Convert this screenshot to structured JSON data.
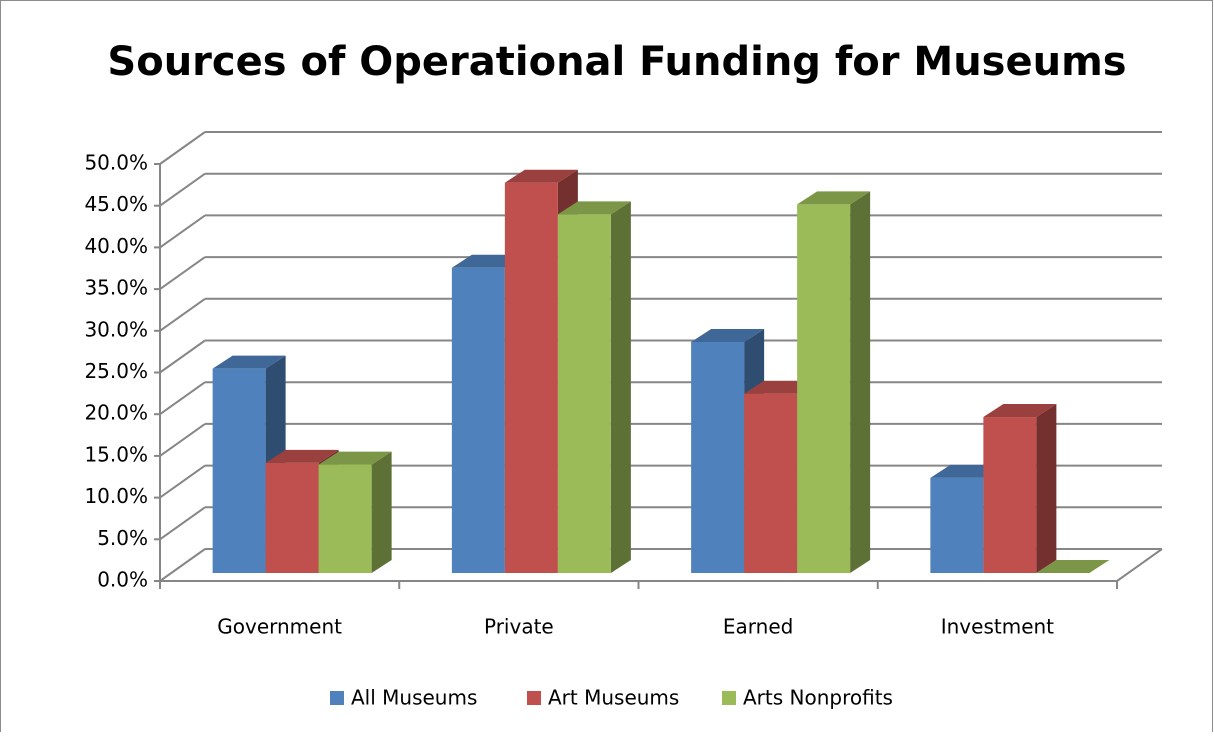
{
  "chart_data": {
    "type": "bar3d",
    "title": "Sources of Operational Funding for Museums",
    "categories": [
      "Government",
      "Private",
      "Earned",
      "Investment"
    ],
    "series": [
      {
        "name": "All Museums",
        "color": "#4f81bd",
        "values": [
          24.5,
          36.6,
          27.7,
          11.4
        ]
      },
      {
        "name": "Art Museums",
        "color": "#c0504d",
        "values": [
          13.2,
          46.8,
          21.5,
          18.7
        ]
      },
      {
        "name": "Arts Nonprofits",
        "color": "#9bbb59",
        "values": [
          13.0,
          43.0,
          44.2,
          0
        ]
      }
    ],
    "ylim": [
      0,
      50
    ],
    "yticks": [
      {
        "value": 0,
        "label": "0.0%"
      },
      {
        "value": 5,
        "label": "5.0%"
      },
      {
        "value": 10,
        "label": "10.0%"
      },
      {
        "value": 15,
        "label": "15.0%"
      },
      {
        "value": 20,
        "label": "20.0%"
      },
      {
        "value": 25,
        "label": "25.0%"
      },
      {
        "value": 30,
        "label": "30.0%"
      },
      {
        "value": 35,
        "label": "35.0%"
      },
      {
        "value": 40,
        "label": "40.0%"
      },
      {
        "value": 45,
        "label": "45.0%"
      },
      {
        "value": 50,
        "label": "50.0%"
      }
    ],
    "grid": true,
    "legend": "bottom"
  }
}
